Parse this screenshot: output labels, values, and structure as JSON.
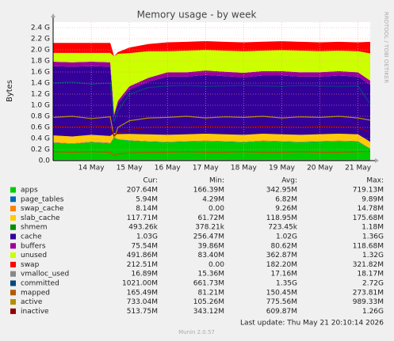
{
  "chart_data": {
    "type": "area",
    "title": "Memory usage - by week",
    "y_label": "Bytes",
    "watermark": "RRDTOOL / TOBI OETIKER",
    "grid": true,
    "xlim": [
      0,
      8.32
    ],
    "xticks": [
      {
        "value": 1,
        "label": "14 May"
      },
      {
        "value": 2,
        "label": "15 May"
      },
      {
        "value": 3,
        "label": "16 May"
      },
      {
        "value": 4,
        "label": "17 May"
      },
      {
        "value": 5,
        "label": "18 May"
      },
      {
        "value": 6,
        "label": "19 May"
      },
      {
        "value": 7,
        "label": "20 May"
      },
      {
        "value": 8,
        "label": "21 May"
      }
    ],
    "ylim": [
      0,
      2.5
    ],
    "yticks": [
      {
        "value": 0,
        "label": "0.0"
      },
      {
        "value": 0.2,
        "label": "0.2 G"
      },
      {
        "value": 0.4,
        "label": "0.4 G"
      },
      {
        "value": 0.6,
        "label": "0.6 G"
      },
      {
        "value": 0.8,
        "label": "0.8 G"
      },
      {
        "value": 1.0,
        "label": "1.0 G"
      },
      {
        "value": 1.2,
        "label": "1.2 G"
      },
      {
        "value": 1.4,
        "label": "1.4 G"
      },
      {
        "value": 1.6,
        "label": "1.6 G"
      },
      {
        "value": 1.8,
        "label": "1.8 G"
      },
      {
        "value": 2.0,
        "label": "2.0 G"
      },
      {
        "value": 2.2,
        "label": "2.2 G"
      },
      {
        "value": 2.4,
        "label": "2.4 G"
      }
    ],
    "x": [
      0,
      0.5,
      1,
      1.5,
      1.6,
      1.7,
      2,
      2.5,
      3,
      3.5,
      4,
      4.5,
      5,
      5.5,
      6,
      6.5,
      7,
      7.5,
      8,
      8.32
    ],
    "columns": [
      "Cur:",
      "Min:",
      "Avg:",
      "Max:"
    ],
    "series": [
      {
        "name": "apps",
        "kind": "area",
        "color": "#00cc00",
        "cur": "207.64M",
        "min": "166.39M",
        "avg": "342.95M",
        "max": "719.13M",
        "values": [
          0.32,
          0.3,
          0.33,
          0.31,
          0.42,
          0.38,
          0.36,
          0.34,
          0.33,
          0.34,
          0.35,
          0.34,
          0.33,
          0.35,
          0.34,
          0.33,
          0.34,
          0.35,
          0.34,
          0.21
        ]
      },
      {
        "name": "page_tables",
        "kind": "area",
        "color": "#0066b3",
        "cur": "5.94M",
        "min": "4.29M",
        "avg": "6.82M",
        "max": "9.89M",
        "values": [
          0.006,
          0.006,
          0.006,
          0.006,
          0.006,
          0.006,
          0.006,
          0.006,
          0.006,
          0.006,
          0.006,
          0.006,
          0.006,
          0.006,
          0.006,
          0.006,
          0.006,
          0.006,
          0.006,
          0.006
        ]
      },
      {
        "name": "swap_cache",
        "kind": "area",
        "color": "#ff8000",
        "cur": "8.14M",
        "min": "0.00",
        "avg": "9.26M",
        "max": "14.78M",
        "values": [
          0.009,
          0.009,
          0.009,
          0.009,
          0.0,
          0.002,
          0.005,
          0.008,
          0.009,
          0.009,
          0.01,
          0.009,
          0.009,
          0.01,
          0.009,
          0.009,
          0.01,
          0.009,
          0.009,
          0.008
        ]
      },
      {
        "name": "slab_cache",
        "kind": "area",
        "color": "#ffcc00",
        "cur": "117.71M",
        "min": "61.72M",
        "avg": "118.95M",
        "max": "175.68M",
        "values": [
          0.12,
          0.12,
          0.12,
          0.12,
          0.07,
          0.09,
          0.11,
          0.12,
          0.12,
          0.12,
          0.12,
          0.12,
          0.12,
          0.12,
          0.12,
          0.12,
          0.12,
          0.12,
          0.12,
          0.115
        ]
      },
      {
        "name": "shmem",
        "kind": "area",
        "color": "#008f00",
        "cur": "493.26k",
        "min": "378.21k",
        "avg": "723.45k",
        "max": "1.18M",
        "values": [
          0.0005,
          0.0005,
          0.0005,
          0.0005,
          0.0005,
          0.0005,
          0.0005,
          0.0005,
          0.0005,
          0.0005,
          0.0005,
          0.0005,
          0.0005,
          0.0005,
          0.0005,
          0.0005,
          0.0005,
          0.0005,
          0.0005,
          0.0005
        ]
      },
      {
        "name": "cache",
        "kind": "area",
        "color": "#330099",
        "cur": "1.03G",
        "min": "256.47M",
        "avg": "1.02G",
        "max": "1.36G",
        "values": [
          1.25,
          1.26,
          1.24,
          1.25,
          0.3,
          0.55,
          0.8,
          0.95,
          1.05,
          1.04,
          1.06,
          1.05,
          1.04,
          1.05,
          1.06,
          1.05,
          1.04,
          1.05,
          1.04,
          1.03
        ]
      },
      {
        "name": "buffers",
        "kind": "area",
        "color": "#990099",
        "cur": "75.54M",
        "min": "39.86M",
        "avg": "80.62M",
        "max": "118.68M",
        "values": [
          0.08,
          0.08,
          0.08,
          0.08,
          0.04,
          0.05,
          0.06,
          0.07,
          0.08,
          0.08,
          0.08,
          0.08,
          0.08,
          0.08,
          0.08,
          0.08,
          0.08,
          0.08,
          0.08,
          0.076
        ]
      },
      {
        "name": "unused",
        "kind": "area",
        "color": "#ccff00",
        "cur": "491.86M",
        "min": "83.40M",
        "avg": "362.87M",
        "max": "1.32G",
        "values": [
          0.16,
          0.17,
          0.16,
          0.17,
          1.05,
          0.85,
          0.6,
          0.48,
          0.38,
          0.39,
          0.37,
          0.38,
          0.39,
          0.37,
          0.38,
          0.39,
          0.38,
          0.37,
          0.38,
          0.49
        ]
      },
      {
        "name": "swap",
        "kind": "area",
        "color": "#ff0000",
        "cur": "212.51M",
        "min": "0.00",
        "avg": "182.20M",
        "max": "321.82M",
        "values": [
          0.18,
          0.18,
          0.18,
          0.18,
          0.0,
          0.03,
          0.1,
          0.13,
          0.16,
          0.16,
          0.16,
          0.16,
          0.16,
          0.16,
          0.16,
          0.16,
          0.16,
          0.16,
          0.16,
          0.21
        ]
      },
      {
        "name": "vmalloc_used",
        "kind": "line",
        "color": "#888888",
        "cur": "16.89M",
        "min": "15.36M",
        "avg": "17.16M",
        "max": "18.17M",
        "values": [
          0.017,
          0.017,
          0.017,
          0.017,
          0.016,
          0.016,
          0.017,
          0.017,
          0.017,
          0.017,
          0.017,
          0.017,
          0.017,
          0.017,
          0.017,
          0.017,
          0.017,
          0.017,
          0.017,
          0.017
        ]
      },
      {
        "name": "committed",
        "kind": "line",
        "color": "#00487d",
        "cur": "1021.00M",
        "min": "661.73M",
        "avg": "1.35G",
        "max": "2.72G",
        "values": [
          1.4,
          1.42,
          1.38,
          1.4,
          0.7,
          0.9,
          1.2,
          1.32,
          1.35,
          1.36,
          1.34,
          1.35,
          1.36,
          1.35,
          1.34,
          1.36,
          1.35,
          1.34,
          1.35,
          1.02
        ]
      },
      {
        "name": "mapped",
        "kind": "line",
        "color": "#b35a00",
        "cur": "165.49M",
        "min": "81.21M",
        "avg": "150.45M",
        "max": "273.81M",
        "values": [
          0.16,
          0.15,
          0.16,
          0.15,
          0.09,
          0.12,
          0.14,
          0.15,
          0.15,
          0.16,
          0.15,
          0.15,
          0.16,
          0.15,
          0.15,
          0.16,
          0.15,
          0.15,
          0.16,
          0.165
        ]
      },
      {
        "name": "active",
        "kind": "line",
        "color": "#b38f00",
        "cur": "733.04M",
        "min": "105.26M",
        "avg": "775.56M",
        "max": "989.33M",
        "values": [
          0.78,
          0.8,
          0.76,
          0.79,
          0.4,
          0.6,
          0.72,
          0.77,
          0.78,
          0.8,
          0.77,
          0.79,
          0.78,
          0.8,
          0.77,
          0.79,
          0.78,
          0.8,
          0.77,
          0.73
        ]
      },
      {
        "name": "inactive",
        "kind": "line",
        "color": "#8f0000",
        "cur": "513.75M",
        "min": "343.12M",
        "avg": "609.87M",
        "max": "1.26G",
        "values": [
          0.62,
          0.6,
          0.63,
          0.61,
          0.45,
          0.5,
          0.56,
          0.6,
          0.61,
          0.6,
          0.62,
          0.61,
          0.6,
          0.62,
          0.61,
          0.6,
          0.62,
          0.61,
          0.6,
          0.51
        ]
      }
    ],
    "last_update": "Last update: Thu May 21 20:10:14 2026",
    "footer": "Munin 2.0.57"
  }
}
